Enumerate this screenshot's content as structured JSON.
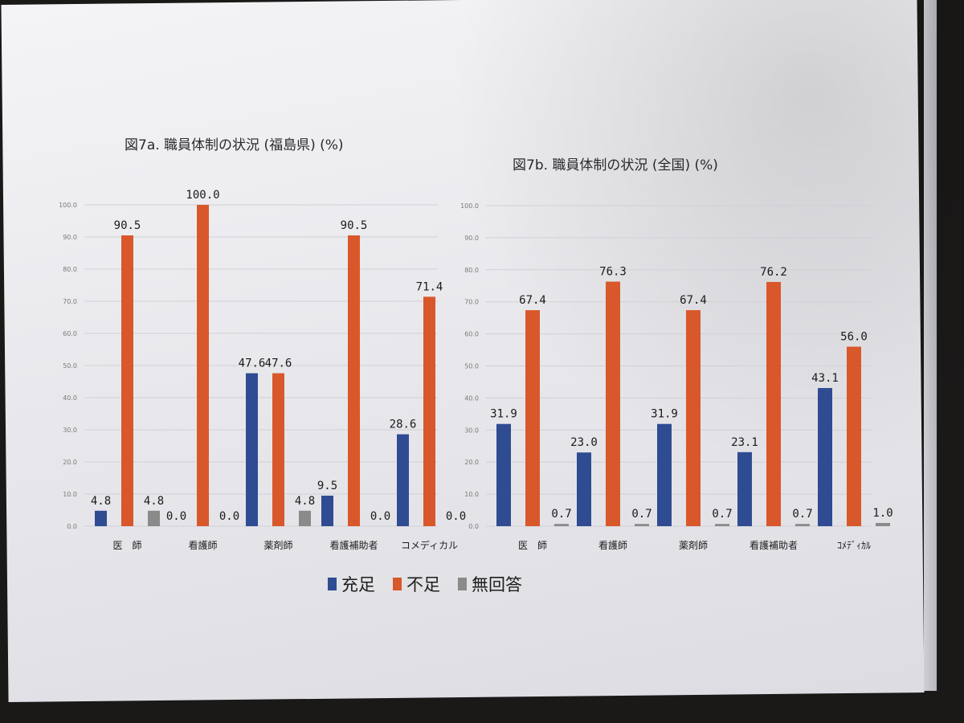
{
  "legend": [
    "充足",
    "不足",
    "無回答"
  ],
  "colors": {
    "充足": "#2f4c93",
    "不足": "#d9582b",
    "無回答": "#8a8a8a"
  },
  "chart_data": [
    {
      "type": "bar",
      "title": "図7a. 職員体制の状況 (福島県) (%)",
      "categories": [
        "医　師",
        "看護師",
        "薬剤師",
        "看護補助者",
        "コメディカル"
      ],
      "series": [
        {
          "name": "充足",
          "values": [
            4.8,
            0.0,
            47.6,
            9.5,
            28.6
          ]
        },
        {
          "name": "不足",
          "values": [
            90.5,
            100.0,
            47.6,
            90.5,
            71.4
          ]
        },
        {
          "name": "無回答",
          "values": [
            4.8,
            0.0,
            4.8,
            0.0,
            0.0
          ]
        }
      ],
      "data_labels": [
        [
          "4.8",
          "0.0",
          "47.6",
          "9.5",
          "28.6"
        ],
        [
          "90.5",
          "100.0",
          "47.6",
          "90.5",
          "71.4"
        ],
        [
          "4.8",
          "0.0",
          "4.8",
          "0.0",
          "0.0"
        ]
      ],
      "ylim": [
        0,
        100
      ],
      "yticks": [
        "0.0",
        "10.0",
        "20.0",
        "30.0",
        "40.0",
        "50.0",
        "60.0",
        "70.0",
        "80.0",
        "90.0",
        "100.0"
      ],
      "grid": true
    },
    {
      "type": "bar",
      "title": "図7b. 職員体制の状況 (全国) (%)",
      "categories": [
        "医　師",
        "看護師",
        "薬剤師",
        "看護補助者",
        "ｺﾒﾃﾞｨｶﾙ"
      ],
      "series": [
        {
          "name": "充足",
          "values": [
            31.9,
            23.0,
            31.9,
            23.1,
            43.1
          ]
        },
        {
          "name": "不足",
          "values": [
            67.4,
            76.3,
            67.4,
            76.2,
            56.0
          ]
        },
        {
          "name": "無回答",
          "values": [
            0.7,
            0.7,
            0.7,
            0.7,
            1.0
          ]
        }
      ],
      "data_labels": [
        [
          "31.9",
          "23.0",
          "31.9",
          "23.1",
          "43.1"
        ],
        [
          "67.4",
          "76.3",
          "67.4",
          "76.2",
          "56.0"
        ],
        [
          "0.7",
          "0.7",
          "0.7",
          "0.7",
          "1.0"
        ]
      ],
      "ylim": [
        0,
        100
      ],
      "yticks": [
        "0.0",
        "10.0",
        "20.0",
        "30.0",
        "40.0",
        "50.0",
        "60.0",
        "70.0",
        "80.0",
        "90.0",
        "100.0"
      ],
      "grid": true
    }
  ]
}
